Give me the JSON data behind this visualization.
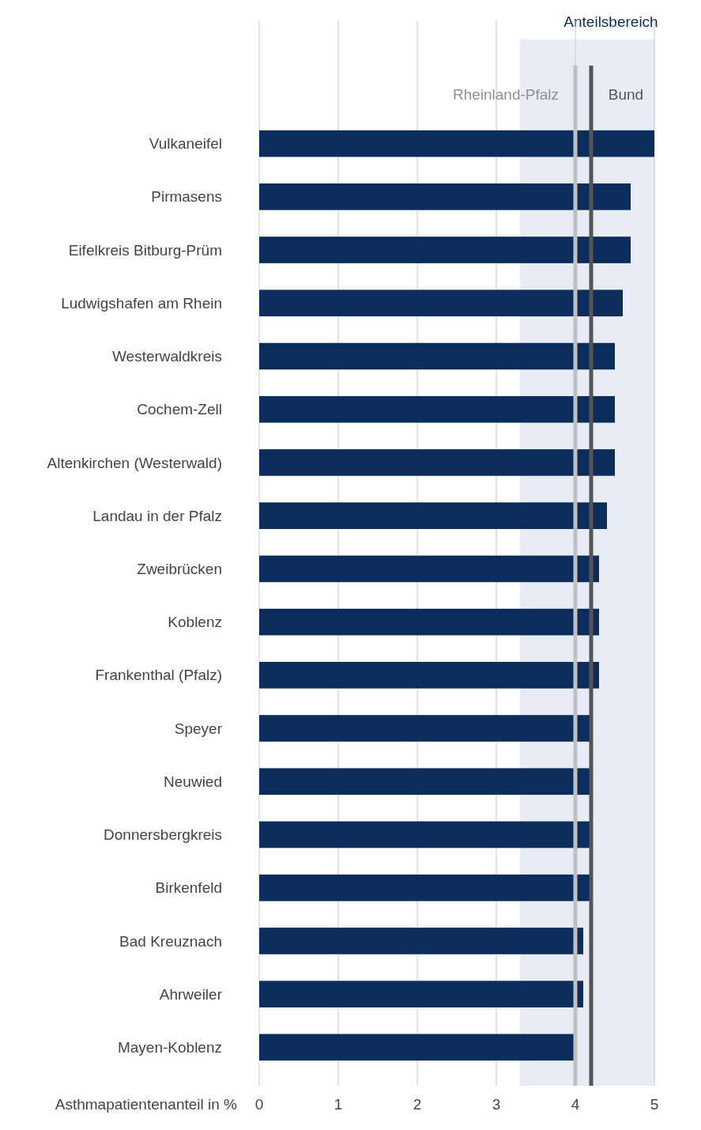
{
  "chart_data": {
    "type": "bar",
    "orientation": "horizontal",
    "xlabel": "Asthmapatientenanteil in %",
    "categories": [
      "Vulkaneifel",
      "Pirmasens",
      "Eifelkreis Bitburg-Prüm",
      "Ludwigshafen am Rhein",
      "Westerwaldkreis",
      "Cochem-Zell",
      "Altenkirchen (Westerwald)",
      "Landau in der Pfalz",
      "Zweibrücken",
      "Koblenz",
      "Frankenthal (Pfalz)",
      "Speyer",
      "Neuwied",
      "Donnersbergkreis",
      "Birkenfeld",
      "Bad Kreuznach",
      "Ahrweiler",
      "Mayen-Koblenz"
    ],
    "values": [
      5.0,
      4.7,
      4.7,
      4.6,
      4.5,
      4.5,
      4.5,
      4.4,
      4.3,
      4.3,
      4.3,
      4.2,
      4.2,
      4.2,
      4.2,
      4.1,
      4.1,
      4.0
    ],
    "color": "#0b2d5b",
    "xlim": [
      0,
      5
    ],
    "xticks": [
      0,
      1,
      2,
      3,
      4,
      5
    ],
    "grid": "x",
    "bands": [
      {
        "axis": "x",
        "from": 3.3,
        "to": 5,
        "label": "Anteilsbereich",
        "color": "#e8ecf4"
      }
    ],
    "ref_lines": [
      {
        "axis": "x",
        "value": 4.0,
        "label": "Rheinland-Pfalz",
        "color": "#c0c0c0"
      },
      {
        "axis": "x",
        "value": 4.2,
        "label": "Bund",
        "color": "#555555"
      }
    ]
  }
}
